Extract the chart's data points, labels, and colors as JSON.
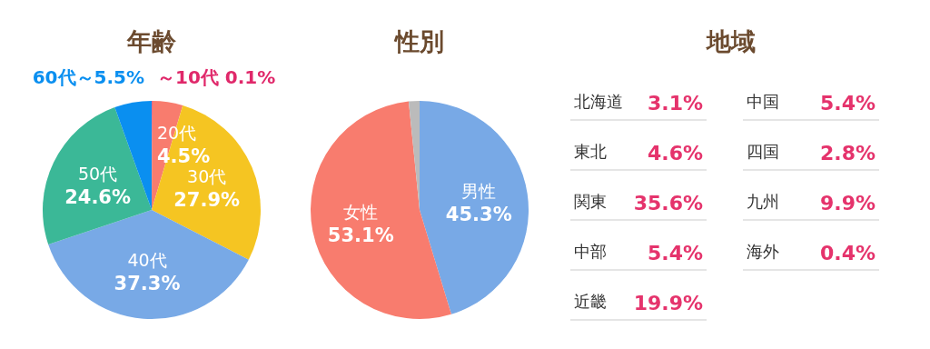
{
  "chart_data": [
    {
      "type": "pie",
      "title": "年齢",
      "categories": [
        "～10代",
        "20代",
        "30代",
        "40代",
        "50代",
        "60代～"
      ],
      "values": [
        0.1,
        4.5,
        27.9,
        37.3,
        24.6,
        5.5
      ],
      "value_labels": [
        "0.1%",
        "4.5%",
        "27.9%",
        "37.3%",
        "24.6%",
        "5.5%"
      ],
      "colors": [
        "#e0286a",
        "#f87c6e",
        "#f5c522",
        "#78a9e6",
        "#3bb897",
        "#0a8ff0"
      ]
    },
    {
      "type": "pie",
      "title": "性別",
      "categories": [
        "男性",
        "女性",
        null
      ],
      "values": [
        45.3,
        53.1,
        1.6
      ],
      "value_labels": [
        "45.3%",
        "53.1%",
        null
      ],
      "colors": [
        "#78a9e6",
        "#f87c6e",
        "#bbbbbb"
      ]
    },
    {
      "type": "other",
      "title": "地域",
      "categories": [
        "北海道",
        "東北",
        "関東",
        "中部",
        "近畿",
        "中国",
        "四国",
        "九州",
        "海外"
      ],
      "value_labels": [
        "3.1%",
        "4.6%",
        "35.6%",
        "5.4%",
        "19.9%",
        "5.4%",
        "2.8%",
        "9.9%",
        "0.4%"
      ],
      "color": "#e5336c"
    }
  ]
}
